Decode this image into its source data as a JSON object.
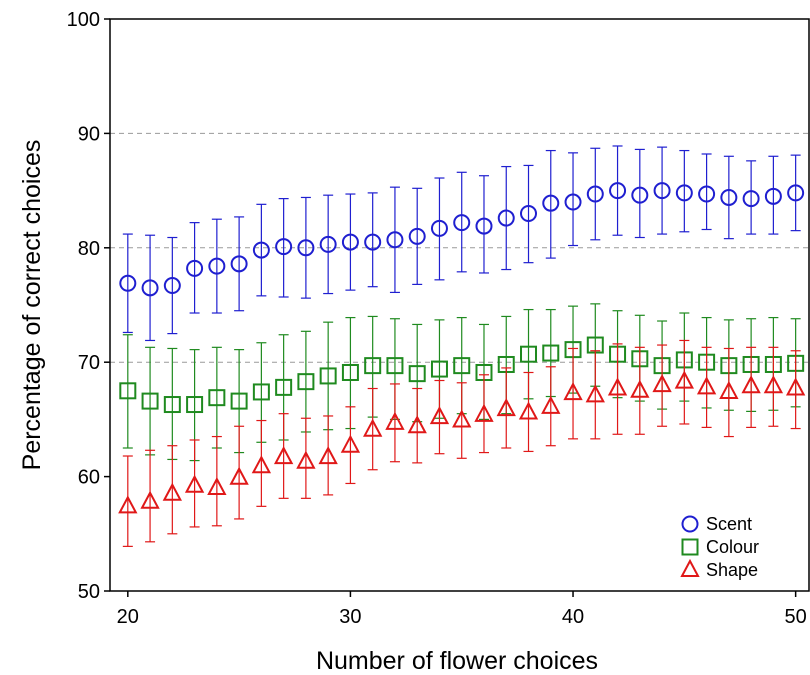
{
  "chart_data": {
    "type": "scatter",
    "title": "",
    "xlabel": "Number of flower choices",
    "ylabel": "Percentage of correct choices",
    "xlim": [
      19.2,
      50.6
    ],
    "ylim": [
      50,
      100
    ],
    "x_ticks": [
      20,
      30,
      40,
      50
    ],
    "y_ticks": [
      50,
      60,
      70,
      80,
      90,
      100
    ],
    "x_tick_labels": [
      "20",
      "30",
      "40",
      "50"
    ],
    "y_tick_labels": [
      "50",
      "60",
      "70",
      "80",
      "90",
      "100"
    ],
    "gridlines_y": [
      70,
      80,
      90
    ],
    "grid": "dashed horizontal at 70, 80, 90",
    "legend_position": "bottom-right",
    "x": [
      20,
      21,
      22,
      23,
      24,
      25,
      26,
      27,
      28,
      29,
      30,
      31,
      32,
      33,
      34,
      35,
      36,
      37,
      38,
      39,
      40,
      41,
      42,
      43,
      44,
      45,
      46,
      47,
      48,
      49,
      50
    ],
    "series": [
      {
        "name": "Scent",
        "marker": "circle",
        "color": "#1f1fd0",
        "values": [
          76.9,
          76.5,
          76.7,
          78.2,
          78.4,
          78.6,
          79.8,
          80.1,
          80.0,
          80.3,
          80.5,
          80.5,
          80.7,
          81.0,
          81.7,
          82.2,
          81.9,
          82.6,
          83.0,
          83.9,
          84.0,
          84.7,
          85.0,
          84.6,
          85.0,
          84.8,
          84.7,
          84.4,
          84.3,
          84.5,
          84.8
        ],
        "err_low": [
          72.6,
          71.9,
          72.5,
          74.3,
          74.3,
          74.5,
          75.8,
          75.7,
          75.6,
          76.0,
          76.3,
          76.6,
          76.1,
          76.8,
          77.2,
          77.9,
          77.8,
          78.1,
          78.7,
          79.1,
          80.2,
          80.7,
          81.1,
          80.9,
          81.2,
          81.4,
          81.6,
          80.8,
          81.2,
          81.2,
          81.5
        ],
        "err_high": [
          81.2,
          81.1,
          80.9,
          82.2,
          82.5,
          82.7,
          83.8,
          84.3,
          84.4,
          84.6,
          84.7,
          84.8,
          85.3,
          85.2,
          86.1,
          86.6,
          86.3,
          87.1,
          87.2,
          88.5,
          88.3,
          88.7,
          88.9,
          88.6,
          88.8,
          88.5,
          88.2,
          88.0,
          87.6,
          88.0,
          88.1
        ]
      },
      {
        "name": "Colour",
        "marker": "square",
        "color": "#1f8a1f",
        "values": [
          67.5,
          66.6,
          66.3,
          66.3,
          66.9,
          66.6,
          67.4,
          67.8,
          68.3,
          68.8,
          69.1,
          69.7,
          69.7,
          69.0,
          69.4,
          69.7,
          69.1,
          69.8,
          70.7,
          70.8,
          71.1,
          71.5,
          70.7,
          70.3,
          69.7,
          70.2,
          70.0,
          69.7,
          69.8,
          69.8,
          69.9
        ],
        "err_low": [
          62.5,
          61.9,
          61.5,
          61.4,
          62.5,
          62.1,
          63.0,
          63.2,
          63.9,
          64.1,
          64.2,
          65.2,
          65.0,
          64.8,
          65.1,
          65.5,
          65.0,
          65.5,
          66.8,
          67.0,
          67.3,
          67.9,
          66.9,
          66.6,
          65.9,
          66.6,
          66.0,
          65.8,
          65.7,
          65.8,
          66.1
        ],
        "err_high": [
          72.4,
          71.3,
          71.2,
          71.1,
          71.3,
          71.1,
          71.7,
          72.4,
          72.7,
          73.5,
          73.9,
          74.0,
          73.8,
          73.3,
          73.7,
          73.9,
          73.3,
          74.0,
          74.6,
          74.6,
          74.9,
          75.1,
          74.5,
          74.1,
          73.6,
          74.3,
          73.9,
          73.7,
          73.8,
          73.9,
          73.8
        ]
      },
      {
        "name": "Shape",
        "marker": "triangle",
        "color": "#e01818",
        "values": [
          57.4,
          57.8,
          58.5,
          59.2,
          59.0,
          59.9,
          60.9,
          61.7,
          61.3,
          61.7,
          62.7,
          64.1,
          64.7,
          64.4,
          65.2,
          64.9,
          65.4,
          65.9,
          65.6,
          66.1,
          67.3,
          67.1,
          67.7,
          67.5,
          68.0,
          68.3,
          67.8,
          67.4,
          67.9,
          67.9,
          67.7
        ],
        "err_low": [
          53.9,
          54.3,
          55.0,
          55.6,
          55.7,
          56.3,
          57.4,
          58.1,
          58.1,
          58.4,
          59.4,
          60.6,
          61.3,
          61.2,
          62.0,
          61.6,
          62.1,
          62.5,
          62.2,
          62.7,
          63.3,
          63.3,
          63.7,
          63.7,
          64.4,
          64.6,
          64.3,
          63.5,
          64.3,
          64.4,
          64.2
        ],
        "err_high": [
          61.8,
          62.3,
          62.7,
          63.2,
          63.5,
          64.4,
          64.9,
          65.5,
          65.1,
          65.3,
          66.1,
          67.7,
          68.1,
          67.7,
          68.4,
          68.2,
          68.9,
          69.5,
          69.1,
          69.6,
          71.2,
          71.0,
          71.6,
          71.3,
          71.5,
          71.9,
          71.3,
          71.2,
          71.3,
          71.3,
          71.0
        ]
      }
    ]
  }
}
